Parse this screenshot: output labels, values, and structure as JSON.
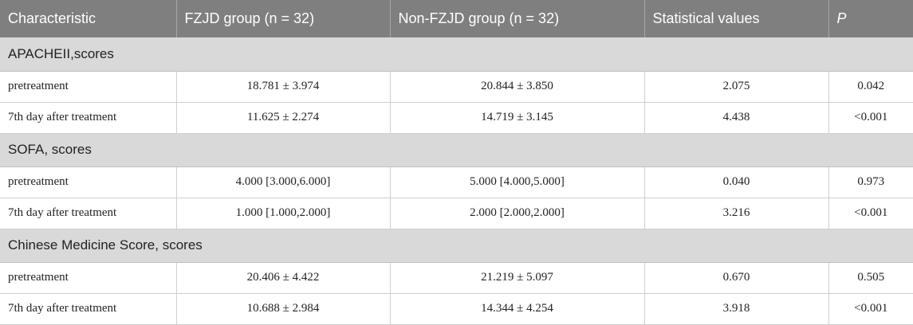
{
  "header": {
    "characteristic": "Characteristic",
    "fzjd": "FZJD group (n = 32)",
    "non_fzjd": "Non-FZJD group (n = 32)",
    "statistical": "Statistical values",
    "p": "P"
  },
  "sections": [
    {
      "title": "APACHEII,scores",
      "rows": [
        {
          "label": "pretreatment",
          "fzjd": "18.781 ± 3.974",
          "non_fzjd": "20.844 ± 3.850",
          "stat": "2.075",
          "p": "0.042"
        },
        {
          "label": "7th day after treatment",
          "fzjd": "11.625 ± 2.274",
          "non_fzjd": "14.719 ± 3.145",
          "stat": "4.438",
          "p": "<0.001"
        }
      ]
    },
    {
      "title": "SOFA, scores",
      "rows": [
        {
          "label": "pretreatment",
          "fzjd": "4.000 [3.000,6.000]",
          "non_fzjd": "5.000 [4.000,5.000]",
          "stat": "0.040",
          "p": "0.973"
        },
        {
          "label": "7th day after treatment",
          "fzjd": "1.000 [1.000,2.000]",
          "non_fzjd": "2.000 [2.000,2.000]",
          "stat": "3.216",
          "p": "<0.001"
        }
      ]
    },
    {
      "title": "Chinese Medicine Score, scores",
      "rows": [
        {
          "label": "pretreatment",
          "fzjd": "20.406 ± 4.422",
          "non_fzjd": "21.219 ± 5.097",
          "stat": "0.670",
          "p": "0.505"
        },
        {
          "label": "7th day after treatment",
          "fzjd": "10.688 ± 2.984",
          "non_fzjd": "14.344 ± 4.254",
          "stat": "3.918",
          "p": "<0.001"
        }
      ]
    }
  ]
}
